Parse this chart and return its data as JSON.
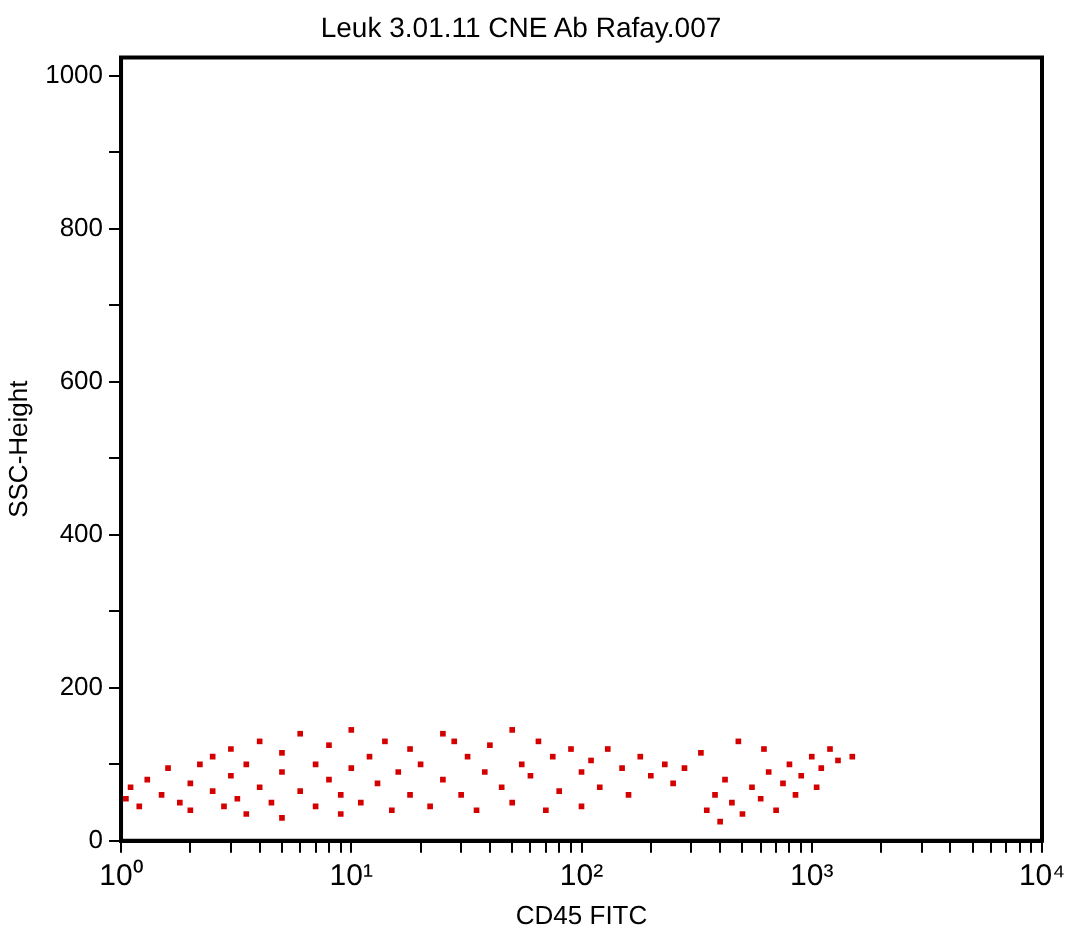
{
  "chart_data": {
    "type": "scatter",
    "title": "Leuk 3.01.11 CNE Ab Rafay.007",
    "xlabel": "CD45 FITC",
    "ylabel": "SSC-Height",
    "log": "x",
    "grid": false,
    "legend": false,
    "marker": "square",
    "xlim": [
      1,
      10000
    ],
    "xticks": [
      {
        "value": 1,
        "label": "10⁰"
      },
      {
        "value": 2,
        "label": null
      },
      {
        "value": 3,
        "label": null
      },
      {
        "value": 4,
        "label": null
      },
      {
        "value": 5,
        "label": null
      },
      {
        "value": 6,
        "label": null
      },
      {
        "value": 7,
        "label": null
      },
      {
        "value": 8,
        "label": null
      },
      {
        "value": 9,
        "label": null
      },
      {
        "value": 10,
        "label": "10¹"
      },
      {
        "value": 20,
        "label": null
      },
      {
        "value": 30,
        "label": null
      },
      {
        "value": 40,
        "label": null
      },
      {
        "value": 50,
        "label": null
      },
      {
        "value": 60,
        "label": null
      },
      {
        "value": 70,
        "label": null
      },
      {
        "value": 80,
        "label": null
      },
      {
        "value": 90,
        "label": null
      },
      {
        "value": 100,
        "label": "10²"
      },
      {
        "value": 200,
        "label": null
      },
      {
        "value": 300,
        "label": null
      },
      {
        "value": 400,
        "label": null
      },
      {
        "value": 500,
        "label": null
      },
      {
        "value": 600,
        "label": null
      },
      {
        "value": 700,
        "label": null
      },
      {
        "value": 800,
        "label": null
      },
      {
        "value": 900,
        "label": null
      },
      {
        "value": 1000,
        "label": "10³"
      },
      {
        "value": 2000,
        "label": null
      },
      {
        "value": 3000,
        "label": null
      },
      {
        "value": 4000,
        "label": null
      },
      {
        "value": 5000,
        "label": null
      },
      {
        "value": 6000,
        "label": null
      },
      {
        "value": 7000,
        "label": null
      },
      {
        "value": 8000,
        "label": null
      },
      {
        "value": 9000,
        "label": null
      },
      {
        "value": 10000,
        "label": "10⁴"
      }
    ],
    "ylim": [
      0,
      1024
    ],
    "yticks": [
      0,
      {
        "value": 100,
        "label": null
      },
      200,
      {
        "value": 300,
        "label": null
      },
      400,
      {
        "value": 500,
        "label": null
      },
      600,
      {
        "value": 700,
        "label": null
      },
      800,
      {
        "value": 900,
        "label": null
      },
      1000
    ],
    "series": [
      {
        "color": "#d40000",
        "x": [
          1.05,
          1.1,
          1.2,
          1.3,
          1.5,
          1.6,
          1.8,
          2,
          2,
          2.2,
          2.5,
          2.5,
          2.8,
          3,
          3,
          3.2,
          3.5,
          3.5,
          4,
          4,
          4.5,
          5,
          5,
          5,
          6,
          6,
          7,
          7,
          8,
          8,
          9,
          9,
          10,
          10,
          11,
          12,
          13,
          14,
          15,
          16,
          18,
          18,
          20,
          22,
          25,
          25,
          28,
          30,
          32,
          35,
          38,
          40,
          45,
          50,
          50,
          55,
          60,
          65,
          70,
          75,
          80,
          90,
          100,
          100,
          110,
          120,
          130,
          150,
          160,
          180,
          200,
          230,
          250,
          280,
          330,
          350,
          380,
          400,
          420,
          450,
          480,
          500,
          550,
          600,
          620,
          650,
          700,
          750,
          800,
          850,
          900,
          1000,
          1050,
          1100,
          1200,
          1300,
          1500
        ],
        "values": [
          55,
          70,
          45,
          80,
          60,
          95,
          50,
          75,
          40,
          100,
          65,
          110,
          45,
          85,
          120,
          55,
          35,
          100,
          70,
          130,
          50,
          90,
          115,
          30,
          65,
          140,
          45,
          100,
          80,
          125,
          35,
          60,
          95,
          145,
          50,
          110,
          75,
          130,
          40,
          90,
          60,
          120,
          100,
          45,
          80,
          140,
          130,
          60,
          110,
          40,
          90,
          125,
          70,
          145,
          50,
          100,
          85,
          130,
          40,
          110,
          65,
          120,
          90,
          45,
          105,
          70,
          120,
          95,
          60,
          110,
          85,
          100,
          75,
          95,
          115,
          40,
          60,
          25,
          80,
          50,
          130,
          35,
          70,
          55,
          120,
          90,
          40,
          75,
          100,
          60,
          85,
          110,
          70,
          95,
          120,
          105,
          110
        ]
      }
    ]
  }
}
